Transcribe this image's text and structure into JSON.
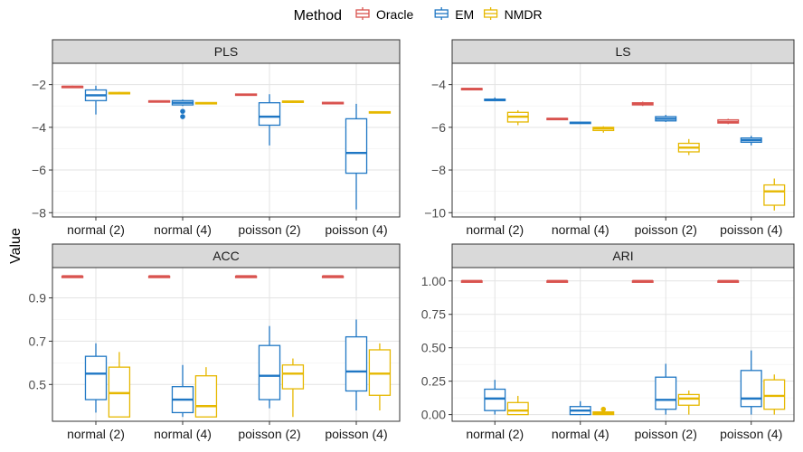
{
  "y_axis_label": "Value",
  "legend": {
    "title": "Method",
    "items": [
      {
        "label": "Oracle",
        "color": "#d9534f"
      },
      {
        "label": "EM",
        "color": "#1f77c4"
      },
      {
        "label": "NMDR",
        "color": "#e6b800"
      }
    ]
  },
  "chart_data": [
    {
      "type": "boxplot",
      "title": "PLS",
      "categories": [
        "normal (2)",
        "normal (4)",
        "poisson (2)",
        "poisson (4)"
      ],
      "yticks": [
        -2,
        -4,
        -6,
        -8
      ],
      "ylim": [
        -8.2,
        -1.0
      ],
      "grid": true,
      "series": [
        {
          "name": "Oracle",
          "boxes": [
            {
              "min": -2.15,
              "q1": -2.12,
              "median": -2.1,
              "q3": -2.08,
              "max": -2.05,
              "outliers": []
            },
            {
              "min": -2.82,
              "q1": -2.8,
              "median": -2.78,
              "q3": -2.76,
              "max": -2.74,
              "outliers": []
            },
            {
              "min": -2.52,
              "q1": -2.5,
              "median": -2.47,
              "q3": -2.44,
              "max": -2.42,
              "outliers": []
            },
            {
              "min": -2.92,
              "q1": -2.9,
              "median": -2.87,
              "q3": -2.83,
              "max": -2.8,
              "outliers": []
            }
          ]
        },
        {
          "name": "EM",
          "boxes": [
            {
              "min": -3.4,
              "q1": -2.75,
              "median": -2.5,
              "q3": -2.25,
              "max": -2.05,
              "outliers": []
            },
            {
              "min": -3.0,
              "q1": -2.95,
              "median": -2.85,
              "q3": -2.75,
              "max": -2.7,
              "outliers": [
                -3.25,
                -3.5
              ]
            },
            {
              "min": -4.85,
              "q1": -3.9,
              "median": -3.5,
              "q3": -2.85,
              "max": -2.45,
              "outliers": []
            },
            {
              "min": -7.85,
              "q1": -6.15,
              "median": -5.2,
              "q3": -3.6,
              "max": -2.9,
              "outliers": []
            }
          ]
        },
        {
          "name": "NMDR",
          "boxes": [
            {
              "min": -2.45,
              "q1": -2.42,
              "median": -2.4,
              "q3": -2.37,
              "max": -2.34,
              "outliers": []
            },
            {
              "min": -2.92,
              "q1": -2.9,
              "median": -2.87,
              "q3": -2.84,
              "max": -2.82,
              "outliers": []
            },
            {
              "min": -2.86,
              "q1": -2.83,
              "median": -2.8,
              "q3": -2.77,
              "max": -2.75,
              "outliers": []
            },
            {
              "min": -3.35,
              "q1": -3.32,
              "median": -3.3,
              "q3": -3.27,
              "max": -3.25,
              "outliers": []
            }
          ]
        }
      ]
    },
    {
      "type": "boxplot",
      "title": "LS",
      "categories": [
        "normal (2)",
        "normal (4)",
        "poisson (2)",
        "poisson (4)"
      ],
      "yticks": [
        -4,
        -6,
        -8,
        -10
      ],
      "ylim": [
        -10.2,
        -3.0
      ],
      "grid": true,
      "series": [
        {
          "name": "Oracle",
          "boxes": [
            {
              "min": -4.25,
              "q1": -4.23,
              "median": -4.2,
              "q3": -4.18,
              "max": -4.16,
              "outliers": []
            },
            {
              "min": -5.63,
              "q1": -5.61,
              "median": -5.6,
              "q3": -5.58,
              "max": -5.57,
              "outliers": []
            },
            {
              "min": -5.0,
              "q1": -4.95,
              "median": -4.9,
              "q3": -4.85,
              "max": -4.8,
              "outliers": []
            },
            {
              "min": -5.85,
              "q1": -5.8,
              "median": -5.75,
              "q3": -5.65,
              "max": -5.6,
              "outliers": []
            }
          ]
        },
        {
          "name": "EM",
          "boxes": [
            {
              "min": -4.78,
              "q1": -4.75,
              "median": -4.72,
              "q3": -4.68,
              "max": -4.6,
              "outliers": []
            },
            {
              "min": -5.82,
              "q1": -5.8,
              "median": -5.78,
              "q3": -5.76,
              "max": -5.74,
              "outliers": []
            },
            {
              "min": -5.75,
              "q1": -5.7,
              "median": -5.6,
              "q3": -5.5,
              "max": -5.42,
              "outliers": []
            },
            {
              "min": -6.85,
              "q1": -6.7,
              "median": -6.6,
              "q3": -6.5,
              "max": -6.4,
              "outliers": []
            }
          ]
        },
        {
          "name": "NMDR",
          "boxes": [
            {
              "min": -5.9,
              "q1": -5.75,
              "median": -5.5,
              "q3": -5.3,
              "max": -5.2,
              "outliers": []
            },
            {
              "min": -6.25,
              "q1": -6.15,
              "median": -6.05,
              "q3": -6.0,
              "max": -5.95,
              "outliers": []
            },
            {
              "min": -7.3,
              "q1": -7.15,
              "median": -6.95,
              "q3": -6.75,
              "max": -6.55,
              "outliers": []
            },
            {
              "min": -9.9,
              "q1": -9.65,
              "median": -9.0,
              "q3": -8.7,
              "max": -8.4,
              "outliers": []
            }
          ]
        }
      ]
    },
    {
      "type": "boxplot",
      "title": "ACC",
      "categories": [
        "normal (2)",
        "normal (4)",
        "poisson (2)",
        "poisson (4)"
      ],
      "yticks": [
        0.9,
        0.7,
        0.5
      ],
      "ylim": [
        0.33,
        1.04
      ],
      "grid": true,
      "series": [
        {
          "name": "Oracle",
          "boxes": [
            {
              "min": 1.0,
              "q1": 1.0,
              "median": 1.0,
              "q3": 1.0,
              "max": 1.0,
              "outliers": []
            },
            {
              "min": 1.0,
              "q1": 1.0,
              "median": 1.0,
              "q3": 1.0,
              "max": 1.0,
              "outliers": []
            },
            {
              "min": 1.0,
              "q1": 1.0,
              "median": 1.0,
              "q3": 1.0,
              "max": 1.0,
              "outliers": []
            },
            {
              "min": 1.0,
              "q1": 1.0,
              "median": 1.0,
              "q3": 1.0,
              "max": 1.0,
              "outliers": []
            }
          ]
        },
        {
          "name": "EM",
          "boxes": [
            {
              "min": 0.37,
              "q1": 0.43,
              "median": 0.55,
              "q3": 0.63,
              "max": 0.69,
              "outliers": []
            },
            {
              "min": 0.35,
              "q1": 0.37,
              "median": 0.43,
              "q3": 0.49,
              "max": 0.59,
              "outliers": []
            },
            {
              "min": 0.39,
              "q1": 0.43,
              "median": 0.54,
              "q3": 0.68,
              "max": 0.77,
              "outliers": []
            },
            {
              "min": 0.38,
              "q1": 0.47,
              "median": 0.56,
              "q3": 0.72,
              "max": 0.8,
              "outliers": []
            }
          ]
        },
        {
          "name": "NMDR",
          "boxes": [
            {
              "min": 0.35,
              "q1": 0.35,
              "median": 0.46,
              "q3": 0.58,
              "max": 0.65,
              "outliers": []
            },
            {
              "min": 0.35,
              "q1": 0.35,
              "median": 0.4,
              "q3": 0.54,
              "max": 0.58,
              "outliers": []
            },
            {
              "min": 0.35,
              "q1": 0.48,
              "median": 0.55,
              "q3": 0.59,
              "max": 0.62,
              "outliers": []
            },
            {
              "min": 0.38,
              "q1": 0.45,
              "median": 0.55,
              "q3": 0.66,
              "max": 0.69,
              "outliers": []
            }
          ]
        }
      ]
    },
    {
      "type": "boxplot",
      "title": "ARI",
      "categories": [
        "normal (2)",
        "normal (4)",
        "poisson (2)",
        "poisson (4)"
      ],
      "yticks": [
        1.0,
        0.75,
        0.5,
        0.25,
        0.0
      ],
      "ylim": [
        -0.05,
        1.1
      ],
      "ytick_labels": [
        "1.00",
        "0.75",
        "0.50",
        "0.25",
        "0.00"
      ],
      "grid": true,
      "series": [
        {
          "name": "Oracle",
          "boxes": [
            {
              "min": 1.0,
              "q1": 1.0,
              "median": 1.0,
              "q3": 1.0,
              "max": 1.0,
              "outliers": []
            },
            {
              "min": 1.0,
              "q1": 1.0,
              "median": 1.0,
              "q3": 1.0,
              "max": 1.0,
              "outliers": []
            },
            {
              "min": 1.0,
              "q1": 1.0,
              "median": 1.0,
              "q3": 1.0,
              "max": 1.0,
              "outliers": []
            },
            {
              "min": 1.0,
              "q1": 1.0,
              "median": 1.0,
              "q3": 1.0,
              "max": 1.0,
              "outliers": []
            }
          ]
        },
        {
          "name": "EM",
          "boxes": [
            {
              "min": 0.0,
              "q1": 0.03,
              "median": 0.12,
              "q3": 0.19,
              "max": 0.26,
              "outliers": []
            },
            {
              "min": 0.0,
              "q1": 0.0,
              "median": 0.03,
              "q3": 0.06,
              "max": 0.1,
              "outliers": []
            },
            {
              "min": 0.0,
              "q1": 0.04,
              "median": 0.11,
              "q3": 0.28,
              "max": 0.38,
              "outliers": []
            },
            {
              "min": 0.0,
              "q1": 0.06,
              "median": 0.12,
              "q3": 0.33,
              "max": 0.48,
              "outliers": []
            }
          ]
        },
        {
          "name": "NMDR",
          "boxes": [
            {
              "min": 0.0,
              "q1": 0.0,
              "median": 0.03,
              "q3": 0.09,
              "max": 0.14,
              "outliers": []
            },
            {
              "min": 0.0,
              "q1": 0.0,
              "median": 0.01,
              "q3": 0.02,
              "max": 0.03,
              "outliers": [
                0.04
              ]
            },
            {
              "min": 0.0,
              "q1": 0.07,
              "median": 0.12,
              "q3": 0.15,
              "max": 0.18,
              "outliers": []
            },
            {
              "min": 0.0,
              "q1": 0.04,
              "median": 0.14,
              "q3": 0.26,
              "max": 0.3,
              "outliers": []
            }
          ]
        }
      ]
    }
  ]
}
